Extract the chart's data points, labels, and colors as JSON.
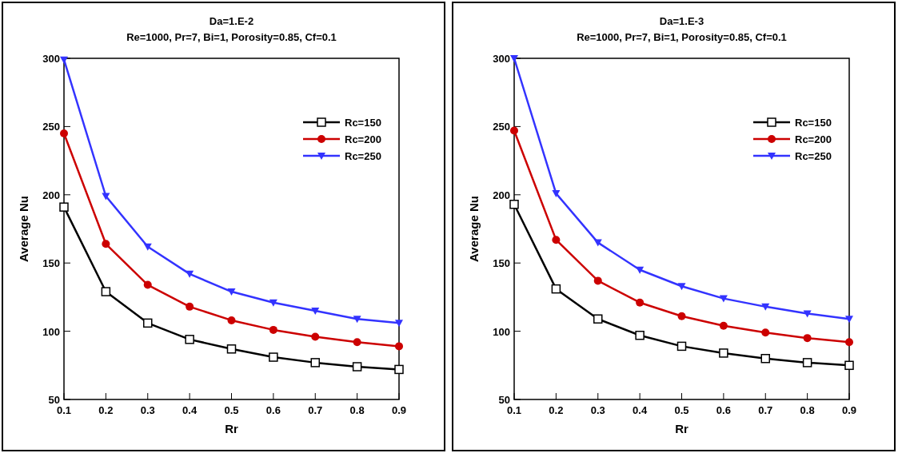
{
  "chart_data": [
    {
      "type": "line",
      "title": "Da=1.E-2",
      "subtitle": "Re=1000,  Pr=7,  Bi=1,  Porosity=0.85,  Cf=0.1",
      "xlabel": "Rr",
      "ylabel": "Average Nu",
      "x": [
        0.1,
        0.2,
        0.3,
        0.4,
        0.5,
        0.6,
        0.7,
        0.8,
        0.9
      ],
      "xlim": [
        0.1,
        0.9
      ],
      "xticks": [
        0.1,
        0.2,
        0.3,
        0.4,
        0.5,
        0.6,
        0.7,
        0.8,
        0.9
      ],
      "ylim": [
        50,
        300
      ],
      "yticks": [
        50,
        100,
        150,
        200,
        250,
        300
      ],
      "grid": false,
      "legend": "top right",
      "line_style": "solid",
      "series": [
        {
          "name": "Rc=150",
          "color": "#000000",
          "marker": "square",
          "values": [
            191,
            129,
            106,
            94,
            87,
            81,
            77,
            74,
            72
          ]
        },
        {
          "name": "Rc=200",
          "color": "#cc0000",
          "marker": "circle",
          "values": [
            245,
            164,
            134,
            118,
            108,
            101,
            96,
            92,
            89
          ]
        },
        {
          "name": "Rc=250",
          "color": "#3333ff",
          "marker": "triangle",
          "values": [
            299,
            199,
            162,
            142,
            129,
            121,
            115,
            109,
            106
          ]
        }
      ]
    },
    {
      "type": "line",
      "title": "Da=1.E-3",
      "subtitle": "Re=1000,  Pr=7,  Bi=1,  Porosity=0.85,  Cf=0.1",
      "xlabel": "Rr",
      "ylabel": "Average Nu",
      "x": [
        0.1,
        0.2,
        0.3,
        0.4,
        0.5,
        0.6,
        0.7,
        0.8,
        0.9
      ],
      "xlim": [
        0.1,
        0.9
      ],
      "xticks": [
        0.1,
        0.2,
        0.3,
        0.4,
        0.5,
        0.6,
        0.7,
        0.8,
        0.9
      ],
      "ylim": [
        50,
        300
      ],
      "yticks": [
        50,
        100,
        150,
        200,
        250,
        300
      ],
      "grid": false,
      "legend": "top right",
      "line_style": "solid",
      "series": [
        {
          "name": "Rc=150",
          "color": "#000000",
          "marker": "square",
          "values": [
            193,
            131,
            109,
            97,
            89,
            84,
            80,
            77,
            75
          ]
        },
        {
          "name": "Rc=200",
          "color": "#cc0000",
          "marker": "circle",
          "values": [
            247,
            167,
            137,
            121,
            111,
            104,
            99,
            95,
            92
          ]
        },
        {
          "name": "Rc=250",
          "color": "#3333ff",
          "marker": "triangle",
          "values": [
            300,
            201,
            165,
            145,
            133,
            124,
            118,
            113,
            109
          ]
        }
      ]
    }
  ]
}
